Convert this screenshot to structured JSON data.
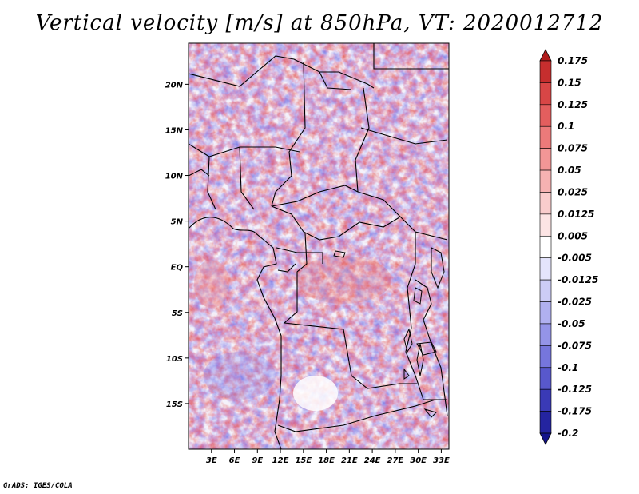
{
  "title": "Vertical velocity [m/s] at 850hPa, VT: 2020012712",
  "credit": "GrADS: IGES/COLA",
  "map": {
    "lat_labels": [
      "20N",
      "15N",
      "10N",
      "5N",
      "EQ",
      "5S",
      "10S",
      "15S"
    ],
    "lon_labels": [
      "3E",
      "6E",
      "9E",
      "12E",
      "15E",
      "18E",
      "21E",
      "24E",
      "27E",
      "30E",
      "33E"
    ],
    "lon_range": [
      0,
      34
    ],
    "lat_range": [
      -20,
      24.5
    ]
  },
  "colorbar": {
    "levels": [
      "0.175",
      "0.15",
      "0.125",
      "0.1",
      "0.075",
      "0.05",
      "0.025",
      "0.0125",
      "0.005",
      "-0.005",
      "-0.0125",
      "-0.025",
      "-0.05",
      "-0.075",
      "-0.1",
      "-0.125",
      "-0.175",
      "-0.2"
    ],
    "colors": [
      "#b01c1c",
      "#c62e2e",
      "#d84646",
      "#e35e5e",
      "#ec7a7a",
      "#f29696",
      "#f6b2b2",
      "#f9cccc",
      "#fce4e4",
      "#ffffff",
      "#e4e4fc",
      "#ccccf6",
      "#b0b0f0",
      "#9494e8",
      "#7676dc",
      "#5858cc",
      "#3a3ab6",
      "#2424a0",
      "#14148a"
    ]
  }
}
